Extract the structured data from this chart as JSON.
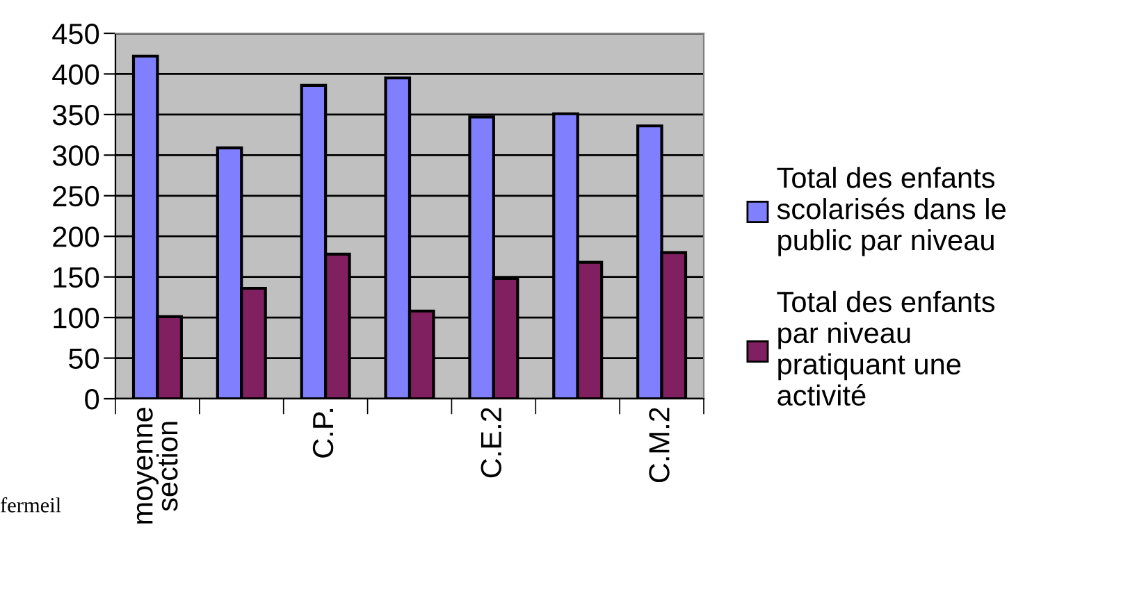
{
  "chart_data": {
    "type": "bar",
    "categories": [
      "moyenne\nsection",
      null,
      "C.P.",
      null,
      "C.E.2",
      null,
      "C.M.2"
    ],
    "series": [
      {
        "name": "Total des enfants\nscolarisés dans le\npublic par niveau",
        "color": "#8080ff",
        "values": [
          422,
          309,
          386,
          395,
          347,
          351,
          336
        ]
      },
      {
        "name": "Total des enfants\npar niveau\npratiquant une\nactivité",
        "color": "#802060",
        "values": [
          101,
          136,
          178,
          108,
          148,
          168,
          180
        ]
      }
    ],
    "ylim": [
      0,
      450
    ],
    "yticks": [
      0,
      50,
      100,
      150,
      200,
      250,
      300,
      350,
      400,
      450
    ],
    "grid": "y",
    "legend": "right",
    "annotations": [
      "fermeil"
    ]
  }
}
